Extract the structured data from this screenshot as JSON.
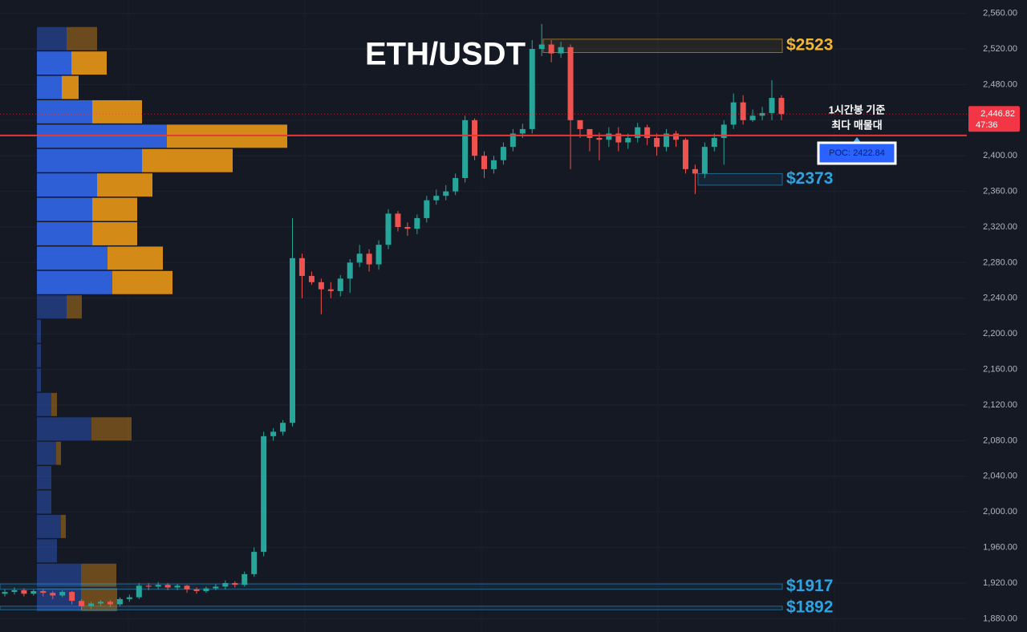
{
  "chart_data": {
    "type": "candlestick",
    "title": "ETH/USDT",
    "up_color": "#26a69a",
    "down_color": "#ef5350",
    "grid": true,
    "ylim": [
      1865,
      2575
    ],
    "yticks": [
      {
        "value": 1880,
        "label": "1,880.00"
      },
      {
        "value": 1920,
        "label": "1,920.00"
      },
      {
        "value": 1960,
        "label": "1,960.00"
      },
      {
        "value": 2000,
        "label": "2,000.00"
      },
      {
        "value": 2040,
        "label": "2,040.00"
      },
      {
        "value": 2080,
        "label": "2,080.00"
      },
      {
        "value": 2120,
        "label": "2,120.00"
      },
      {
        "value": 2160,
        "label": "2,160.00"
      },
      {
        "value": 2200,
        "label": "2,200.00"
      },
      {
        "value": 2240,
        "label": "2,240.00"
      },
      {
        "value": 2280,
        "label": "2,280.00"
      },
      {
        "value": 2320,
        "label": "2,320.00"
      },
      {
        "value": 2360,
        "label": "2,360.00"
      },
      {
        "value": 2400,
        "label": "2,400.00"
      },
      {
        "value": 2440,
        "label": "2,440.00"
      },
      {
        "value": 2480,
        "label": "2,480.00"
      },
      {
        "value": 2520,
        "label": "2,520.00"
      },
      {
        "value": 2560,
        "label": "2,560.00"
      }
    ],
    "open": [
      1908,
      1910,
      1912,
      1908,
      1911,
      1909,
      1906,
      1910,
      1900,
      1894,
      1897,
      1899,
      1896,
      1902,
      1904,
      1917,
      1916,
      1918,
      1915,
      1917,
      1913,
      1911,
      1914,
      1916,
      1920,
      1918,
      1930,
      1955,
      2085,
      2090,
      2100,
      2285,
      2265,
      2258,
      2250,
      2248,
      2262,
      2280,
      2290,
      2278,
      2300,
      2335,
      2320,
      2318,
      2330,
      2350,
      2355,
      2360,
      2375,
      2440,
      2400,
      2385,
      2395,
      2410,
      2425,
      2430,
      2520,
      2525,
      2515,
      2522,
      2440,
      2430,
      2420,
      2418,
      2425,
      2415,
      2420,
      2432,
      2420,
      2410,
      2425,
      2418,
      2385,
      2380,
      2410,
      2420,
      2435,
      2460,
      2440,
      2445,
      2448,
      2465
    ],
    "high": [
      1913,
      1915,
      1914,
      1913,
      1913,
      1911,
      1912,
      1911,
      1902,
      1899,
      1901,
      1901,
      1904,
      1907,
      1920,
      1920,
      1921,
      1920,
      1919,
      1918,
      1915,
      1916,
      1919,
      1923,
      1922,
      1933,
      1960,
      2090,
      2094,
      2103,
      2330,
      2290,
      2270,
      2262,
      2258,
      2266,
      2284,
      2300,
      2295,
      2305,
      2340,
      2338,
      2325,
      2334,
      2355,
      2362,
      2367,
      2380,
      2445,
      2442,
      2405,
      2400,
      2415,
      2430,
      2436,
      2530,
      2548,
      2530,
      2528,
      2525,
      2438,
      2428,
      2426,
      2432,
      2432,
      2425,
      2437,
      2435,
      2425,
      2430,
      2428,
      2420,
      2390,
      2415,
      2425,
      2440,
      2470,
      2468,
      2452,
      2455,
      2485,
      2468
    ],
    "low": [
      1905,
      1907,
      1905,
      1906,
      1905,
      1902,
      1904,
      1896,
      1890,
      1891,
      1894,
      1893,
      1894,
      1899,
      1902,
      1912,
      1913,
      1912,
      1912,
      1909,
      1908,
      1909,
      1912,
      1913,
      1915,
      1916,
      1927,
      1950,
      2080,
      2086,
      2096,
      2240,
      2255,
      2222,
      2240,
      2242,
      2246,
      2275,
      2270,
      2272,
      2295,
      2315,
      2310,
      2312,
      2325,
      2345,
      2350,
      2356,
      2370,
      2395,
      2375,
      2380,
      2390,
      2405,
      2420,
      2425,
      2512,
      2505,
      2510,
      2385,
      2420,
      2405,
      2395,
      2410,
      2405,
      2408,
      2415,
      2412,
      2400,
      2405,
      2410,
      2380,
      2357,
      2375,
      2405,
      2390,
      2430,
      2435,
      2438,
      2440,
      2440,
      2440
    ],
    "close": [
      1910,
      1912,
      1908,
      1911,
      1909,
      1906,
      1910,
      1900,
      1894,
      1897,
      1899,
      1896,
      1902,
      1904,
      1917,
      1916,
      1918,
      1915,
      1917,
      1913,
      1911,
      1914,
      1916,
      1920,
      1918,
      1930,
      1955,
      2085,
      2090,
      2100,
      2285,
      2265,
      2258,
      2250,
      2248,
      2262,
      2280,
      2290,
      2278,
      2300,
      2335,
      2320,
      2318,
      2330,
      2350,
      2355,
      2360,
      2375,
      2440,
      2400,
      2385,
      2395,
      2410,
      2425,
      2430,
      2520,
      2525,
      2515,
      2522,
      2440,
      2430,
      2420,
      2418,
      2425,
      2415,
      2420,
      2432,
      2420,
      2410,
      2425,
      2418,
      2385,
      2380,
      2410,
      2420,
      2435,
      2460,
      2440,
      2445,
      2448,
      2465,
      2446.82
    ],
    "volume_profile": {
      "bins": [
        1887,
        1914.4,
        1941.8,
        1969.2,
        1996.6,
        2024,
        2051.4,
        2078.8,
        2106.2,
        2133.6,
        2161,
        2188.4,
        2215.8,
        2243.2,
        2270.6,
        2298,
        2325.4,
        2352.8,
        2380.2,
        2407.6,
        2435,
        2462.4,
        2489.8,
        2517.2,
        2544.6
      ],
      "buy": [
        55,
        55,
        25,
        30,
        18,
        18,
        24,
        68,
        18,
        5,
        5,
        5,
        37,
        94,
        88,
        69,
        69,
        75,
        131,
        162,
        69,
        31,
        43,
        37
      ],
      "sell": [
        45,
        44,
        0,
        6,
        0,
        0,
        6,
        50,
        7,
        0,
        0,
        0,
        19,
        75,
        69,
        56,
        56,
        69,
        113,
        150,
        62,
        21,
        44,
        38
      ],
      "buy_color": "#2f5fd6",
      "sell_color": "#d48a16",
      "value_area": {
        "low": 2243.2,
        "high": 2517.2
      }
    },
    "poc": {
      "value": 2422.84,
      "label": "POC: 2422.84",
      "color": "#e53935"
    },
    "annotation": [
      "1시간봉 기준",
      "최다 매물대"
    ],
    "levels": [
      {
        "label": "$2523",
        "low": 2516,
        "high": 2531,
        "color": "#f2b632"
      },
      {
        "label": "$2373",
        "low": 2367,
        "high": 2380,
        "color": "#2ea3e0"
      },
      {
        "label": "$1917",
        "low": 1913,
        "high": 1919,
        "color": "#2ea3e0"
      },
      {
        "label": "$1892",
        "low": 1890,
        "high": 1894,
        "color": "#2ea3e0"
      }
    ],
    "last_price": {
      "value": 2446.82,
      "label": "2,446.82",
      "countdown": "47:36",
      "color": "#f23645"
    }
  }
}
